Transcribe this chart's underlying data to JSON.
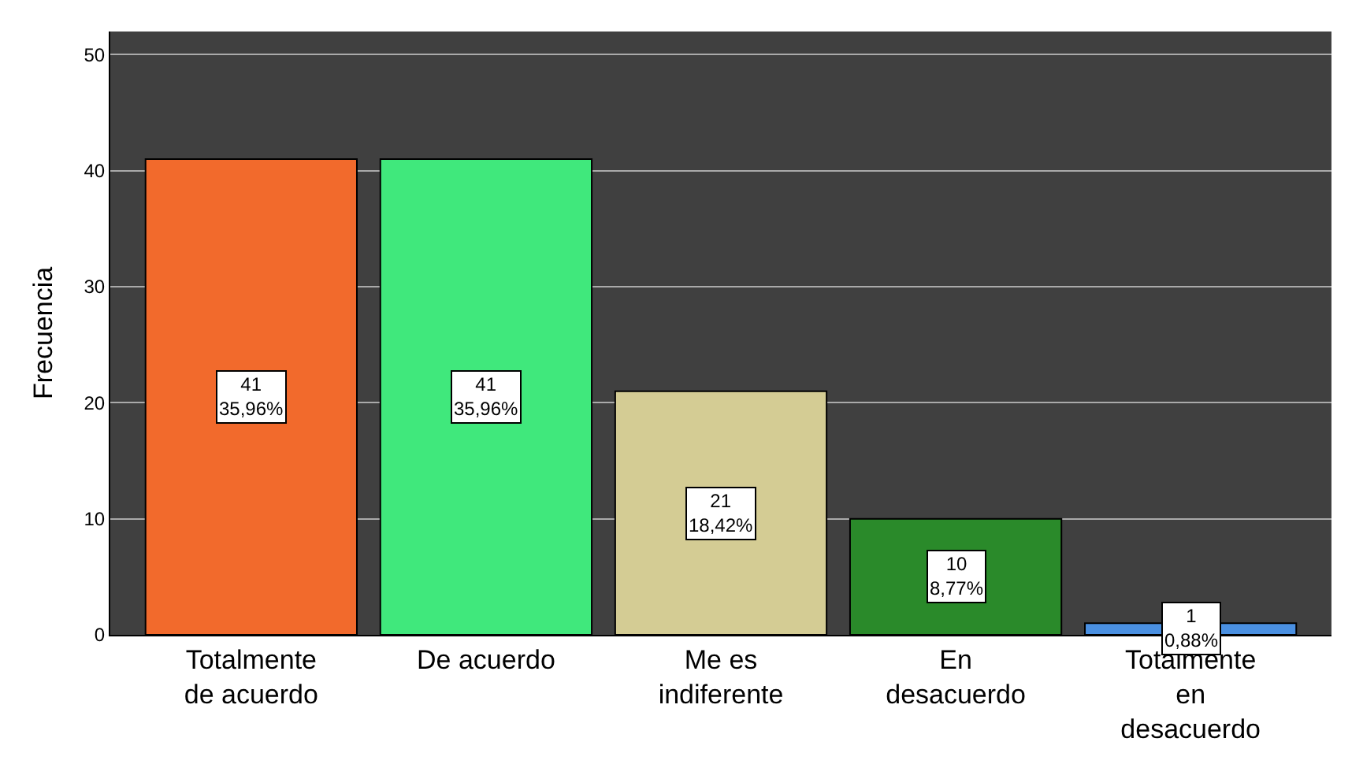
{
  "chart_data": {
    "type": "bar",
    "ylabel": "Frecuencia",
    "categories": [
      "Totalmente de acuerdo",
      "De acuerdo",
      "Me es indiferente",
      "En desacuerdo",
      "Totalmente en desacuerdo"
    ],
    "values": [
      41,
      41,
      21,
      10,
      1
    ],
    "colors": [
      "#f26a2c",
      "#40e87c",
      "#d4cc94",
      "#2a8a2a",
      "#4a90e2"
    ],
    "value_labels": [
      "41\n35,96%",
      "41\n35,96%",
      "21\n18,42%",
      "10\n8,77%",
      "1\n0,88%"
    ],
    "ylim": [
      0,
      52
    ],
    "yticks": [
      0,
      10,
      20,
      30,
      40,
      50
    ],
    "grid": "y"
  }
}
